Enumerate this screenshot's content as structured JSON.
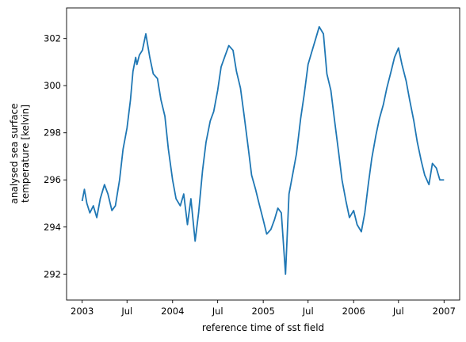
{
  "chart_data": {
    "type": "line",
    "xlabel": "reference time of sst field",
    "ylabel_lines": [
      "analysed sea surface",
      "temperature [kelvin]"
    ],
    "xlim": [
      "2002-10-30",
      "2007-03-05"
    ],
    "ylim": [
      290.9,
      303.3
    ],
    "x_ticks": [
      {
        "date": "2003-01-01",
        "label": "2003"
      },
      {
        "date": "2003-07-01",
        "label": "Jul"
      },
      {
        "date": "2004-01-01",
        "label": "2004"
      },
      {
        "date": "2004-07-01",
        "label": "Jul"
      },
      {
        "date": "2005-01-01",
        "label": "2005"
      },
      {
        "date": "2005-07-01",
        "label": "Jul"
      },
      {
        "date": "2006-01-01",
        "label": "2006"
      },
      {
        "date": "2006-07-01",
        "label": "Jul"
      },
      {
        "date": "2007-01-01",
        "label": "2007"
      }
    ],
    "y_ticks": [
      292,
      294,
      296,
      298,
      300,
      302
    ],
    "grid": false,
    "line_color": "#1f77b4",
    "series": [
      {
        "x": [
          "2003-01-01",
          "2003-01-10",
          "2003-01-20",
          "2003-02-01",
          "2003-02-15",
          "2003-03-01",
          "2003-03-15",
          "2003-04-01",
          "2003-04-15",
          "2003-05-01",
          "2003-05-15",
          "2003-06-01",
          "2003-06-15",
          "2003-07-01",
          "2003-07-15",
          "2003-07-25",
          "2003-08-05",
          "2003-08-10",
          "2003-08-20",
          "2003-09-01",
          "2003-09-15",
          "2003-10-01",
          "2003-10-15",
          "2003-11-01",
          "2003-11-15",
          "2003-12-01",
          "2003-12-15",
          "2004-01-01",
          "2004-01-15",
          "2004-02-01",
          "2004-02-15",
          "2004-03-01",
          "2004-03-15",
          "2004-04-01",
          "2004-04-15",
          "2004-05-01",
          "2004-05-15",
          "2004-06-01",
          "2004-06-15",
          "2004-07-01",
          "2004-07-15",
          "2004-08-01",
          "2004-08-15",
          "2004-09-01",
          "2004-09-15",
          "2004-10-01",
          "2004-10-15",
          "2004-11-01",
          "2004-11-15",
          "2004-12-01",
          "2004-12-15",
          "2005-01-01",
          "2005-01-15",
          "2005-02-01",
          "2005-02-15",
          "2005-03-01",
          "2005-03-15",
          "2005-04-01",
          "2005-04-15",
          "2005-05-01",
          "2005-05-15",
          "2005-06-01",
          "2005-06-15",
          "2005-07-01",
          "2005-07-15",
          "2005-08-01",
          "2005-08-15",
          "2005-09-01",
          "2005-09-15",
          "2005-10-01",
          "2005-10-15",
          "2005-11-01",
          "2005-11-15",
          "2005-12-01",
          "2005-12-15",
          "2006-01-01",
          "2006-01-15",
          "2006-02-01",
          "2006-02-15",
          "2006-03-01",
          "2006-03-15",
          "2006-04-01",
          "2006-04-15",
          "2006-05-01",
          "2006-05-15",
          "2006-06-01",
          "2006-06-15",
          "2006-07-01",
          "2006-07-15",
          "2006-08-01",
          "2006-08-15",
          "2006-09-01",
          "2006-09-15",
          "2006-10-01",
          "2006-10-15",
          "2006-11-01",
          "2006-11-15",
          "2006-12-01",
          "2006-12-15",
          "2007-01-01"
        ],
        "y": [
          295.1,
          295.6,
          295.0,
          294.6,
          294.9,
          294.4,
          295.2,
          295.8,
          295.4,
          294.7,
          294.9,
          296.0,
          297.3,
          298.2,
          299.4,
          300.6,
          301.2,
          300.9,
          301.3,
          301.5,
          302.2,
          301.2,
          300.5,
          300.3,
          299.4,
          298.7,
          297.3,
          296.0,
          295.2,
          294.9,
          295.4,
          294.1,
          295.2,
          293.4,
          294.6,
          296.4,
          297.6,
          298.5,
          298.9,
          299.8,
          300.8,
          301.3,
          301.7,
          301.5,
          300.6,
          299.9,
          298.8,
          297.4,
          296.2,
          295.6,
          295.0,
          294.3,
          293.7,
          293.9,
          294.3,
          294.8,
          294.6,
          292.0,
          295.4,
          296.3,
          297.1,
          298.6,
          299.6,
          300.9,
          301.4,
          302.0,
          302.5,
          302.2,
          300.5,
          299.8,
          298.6,
          297.2,
          296.0,
          295.1,
          294.4,
          294.7,
          294.1,
          293.8,
          294.6,
          295.8,
          296.9,
          297.9,
          298.6,
          299.2,
          299.9,
          300.6,
          301.2,
          301.6,
          300.9,
          300.2,
          299.4,
          298.5,
          297.6,
          296.8,
          296.2,
          295.8,
          296.7,
          296.5,
          296.0,
          296.0
        ]
      }
    ]
  }
}
